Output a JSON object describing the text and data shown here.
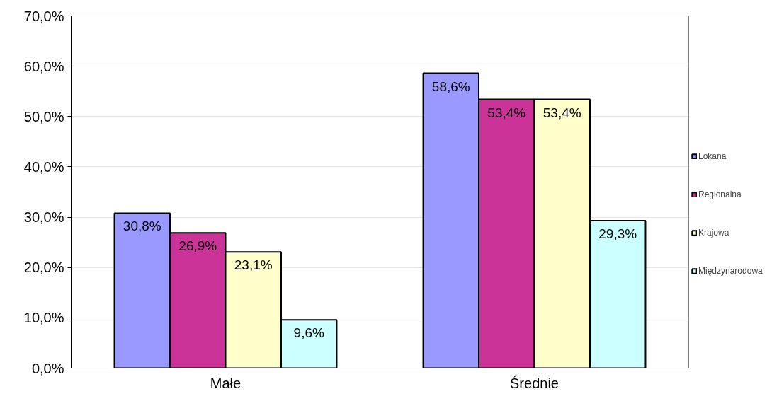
{
  "chart_data": {
    "type": "bar",
    "categories": [
      "Małe",
      "Średnie"
    ],
    "series": [
      {
        "name": "Lokana",
        "color": "#9999ff",
        "values": [
          30.8,
          58.6
        ],
        "value_labels": [
          "30,8%",
          "58,6%"
        ]
      },
      {
        "name": "Regionalna",
        "color": "#cc3399",
        "values": [
          26.9,
          53.4
        ],
        "value_labels": [
          "26,9%",
          "53,4%"
        ]
      },
      {
        "name": "Krajowa",
        "color": "#ffffcc",
        "values": [
          23.1,
          53.4
        ],
        "value_labels": [
          "23,1%",
          "53,4%"
        ]
      },
      {
        "name": "Międzynarodowa",
        "color": "#ccffff",
        "values": [
          9.6,
          29.3
        ],
        "value_labels": [
          "9,6%",
          "29,3%"
        ]
      }
    ],
    "ylim": [
      0,
      70
    ],
    "yticks": [
      {
        "value": 0,
        "label": "0,0%"
      },
      {
        "value": 10,
        "label": "10,0%"
      },
      {
        "value": 20,
        "label": "20,0%"
      },
      {
        "value": 30,
        "label": "30,0%"
      },
      {
        "value": 40,
        "label": "40,0%"
      },
      {
        "value": 50,
        "label": "50,0%"
      },
      {
        "value": 60,
        "label": "60,0%"
      },
      {
        "value": 70,
        "label": "70,0%"
      }
    ],
    "grid": "y",
    "legend": "right"
  }
}
